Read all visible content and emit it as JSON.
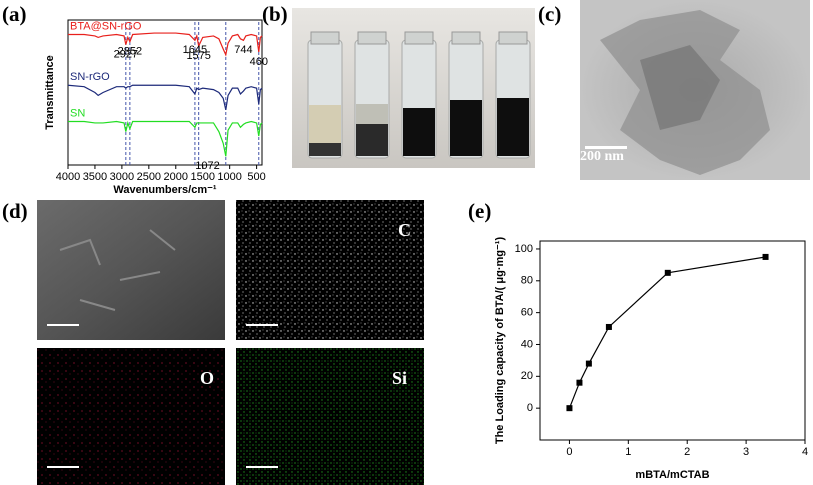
{
  "panel_labels": [
    "(a)",
    "(b)",
    "(c)",
    "(d)",
    "(e)"
  ],
  "images": {
    "tem_scale": "200 nm",
    "eds_elements": [
      "C",
      "O",
      "Si"
    ]
  },
  "chart_data": [
    {
      "type": "line",
      "xlabel": "Wavenumbers/cm⁻¹",
      "ylabel": "Transmittance",
      "x": [
        4000,
        3700,
        3500,
        3440,
        3350,
        3100,
        2960,
        2927,
        2890,
        2852,
        2800,
        2400,
        2000,
        1750,
        1645,
        1610,
        1575,
        1500,
        1300,
        1200,
        1120,
        1072,
        1030,
        950,
        850,
        800,
        744,
        700,
        600,
        500,
        460,
        430,
        400
      ],
      "xlim": [
        4000,
        400
      ],
      "xticks": [
        4000,
        3500,
        3000,
        2500,
        2000,
        1500,
        1000,
        500
      ],
      "ylim": [
        0,
        10
      ],
      "series": [
        {
          "name": "BTA@SN-rGO",
          "color": "#e8201c",
          "values": [
            9.0,
            9.0,
            8.9,
            8.8,
            8.9,
            9.0,
            8.9,
            8.3,
            8.8,
            8.5,
            9.0,
            9.1,
            9.1,
            9.0,
            8.6,
            8.9,
            8.2,
            8.8,
            8.9,
            8.7,
            8.0,
            7.6,
            8.4,
            8.9,
            9.0,
            8.7,
            8.6,
            8.9,
            9.0,
            8.9,
            7.8,
            8.8,
            8.9
          ]
        },
        {
          "name": "SN-rGO",
          "color": "#1d2a7a",
          "values": [
            5.5,
            5.4,
            5.0,
            4.8,
            5.0,
            5.4,
            5.4,
            5.3,
            5.4,
            5.4,
            5.5,
            5.5,
            5.5,
            5.4,
            4.9,
            5.3,
            5.2,
            5.3,
            5.2,
            5.0,
            4.6,
            3.8,
            4.8,
            5.3,
            5.3,
            4.9,
            5.1,
            5.3,
            5.4,
            5.3,
            4.2,
            5.2,
            5.3
          ]
        },
        {
          "name": "SN",
          "color": "#22dd22",
          "values": [
            3.0,
            3.0,
            2.9,
            2.9,
            2.9,
            3.0,
            2.9,
            2.3,
            2.9,
            2.5,
            3.0,
            3.0,
            3.0,
            3.0,
            2.6,
            2.9,
            2.9,
            2.9,
            2.9,
            2.3,
            1.5,
            0.6,
            2.4,
            2.9,
            2.9,
            2.6,
            2.8,
            2.9,
            3.0,
            2.9,
            2.0,
            2.8,
            2.9
          ]
        }
      ],
      "reference_lines": [
        2927,
        2852,
        1645,
        1575,
        1072,
        460
      ],
      "annotations": [
        {
          "label": "2927",
          "x": 2927,
          "series": 0
        },
        {
          "label": "2852",
          "x": 2852,
          "series": 0
        },
        {
          "label": "1645",
          "x": 1645,
          "series": 0
        },
        {
          "label": "1575",
          "x": 1575,
          "series": 0
        },
        {
          "label": "744",
          "x": 744,
          "series": 0
        },
        {
          "label": "460",
          "x": 460,
          "series": 0
        },
        {
          "label": "1072",
          "x": 1072,
          "series": 2
        }
      ]
    },
    {
      "type": "line",
      "xlabel": "mBTA/mCTAB",
      "ylabel": "The Loading capacity of BTA/( μg·mg⁻¹)",
      "x": [
        0,
        0.17,
        0.33,
        0.67,
        1.67,
        3.33
      ],
      "values": [
        0,
        16,
        28,
        51,
        85,
        95
      ],
      "color": "#000000",
      "markers": "square",
      "xlim": [
        -0.5,
        4
      ],
      "xticks": [
        0,
        1,
        2,
        3,
        4
      ],
      "ylim": [
        -20,
        105
      ],
      "yticks": [
        0,
        20,
        40,
        60,
        80,
        100
      ]
    }
  ]
}
